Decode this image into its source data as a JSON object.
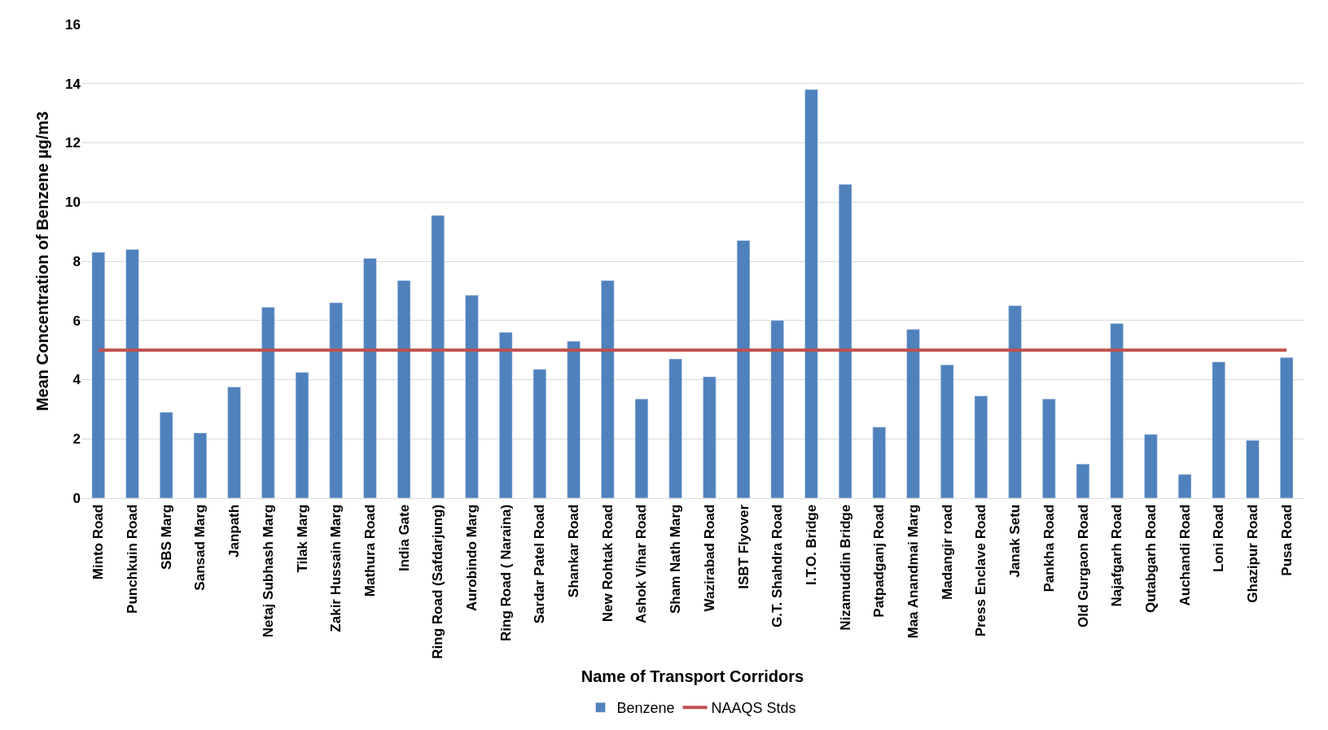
{
  "chart_data": {
    "type": "bar",
    "xlabel": "Name of Transport Corridors",
    "ylabel": "Mean Concentration of Benzene µg/m3",
    "categories": [
      "Minto Road",
      "Punchkuin Road",
      "SBS Marg",
      "Sansad Marg",
      "Janpath",
      "Netaj Subhash Marg",
      "Tilak Marg",
      "Zakir Hussain Marg",
      "Mathura Road",
      "India Gate",
      "Ring Road (Safdarjung)",
      "Aurobindo Marg",
      "Ring Road ( Naraina)",
      "Sardar Patel Road",
      "Shankar Road",
      "New Rohtak Road",
      "Ashok Vihar Road",
      "Sham Nath Marg",
      "Wazirabad Road",
      "ISBT Flyover",
      "G.T. Shahdra Road",
      "I.T.O. Bridge",
      "Nizamuddin Bridge",
      "Patpadganj Road",
      "Maa Anandmai Marg",
      "Madangir road",
      "Press Enclave Road",
      "Janak Setu",
      "Pankha Road",
      "Old Gurgaon Road",
      "Najafgarh Road",
      "Qutabgarh Road",
      "Auchandi Road",
      "Loni Road",
      "Ghazipur Road",
      "Pusa Road"
    ],
    "series": [
      {
        "name": "Benzene",
        "color": "#4f81bd",
        "values": [
          8.3,
          8.4,
          2.9,
          2.2,
          3.75,
          6.45,
          4.25,
          6.6,
          8.1,
          7.35,
          9.55,
          6.85,
          5.6,
          4.35,
          5.3,
          7.35,
          3.35,
          4.7,
          4.1,
          8.7,
          6.0,
          13.8,
          10.6,
          2.4,
          5.7,
          4.5,
          3.45,
          6.5,
          3.35,
          1.15,
          5.9,
          2.15,
          0.8,
          4.6,
          1.95,
          4.75
        ]
      },
      {
        "name": "NAAQS Stds",
        "type": "line",
        "color": "#c0504d",
        "values": [
          5,
          5,
          5,
          5,
          5,
          5,
          5,
          5,
          5,
          5,
          5,
          5,
          5,
          5,
          5,
          5,
          5,
          5,
          5,
          5,
          5,
          5,
          5,
          5,
          5,
          5,
          5,
          5,
          5,
          5,
          5,
          5,
          5,
          5,
          5,
          5
        ]
      }
    ],
    "ylim": [
      0,
      16
    ],
    "yticks": [
      0,
      2,
      4,
      6,
      8,
      10,
      12,
      14,
      16
    ],
    "grid": "y",
    "legend": "bottom",
    "marker": "none",
    "line_style": "solid"
  }
}
